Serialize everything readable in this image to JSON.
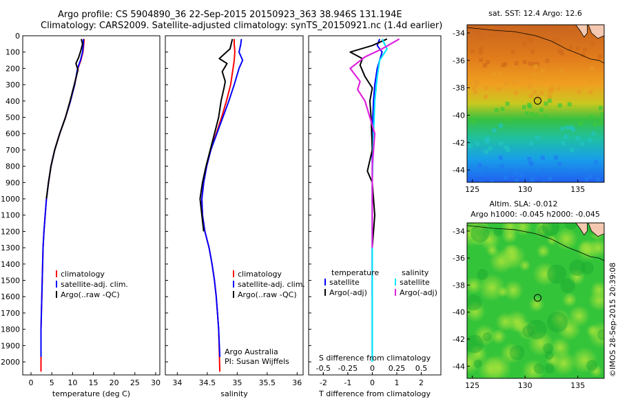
{
  "header": {
    "line1": "Argo profile: CS 5904890_36 22-Sep-2015 20150923_363 38.946S 131.194E",
    "line2": "Climatology: CARS2009. Satellite-adjusted climatology: synTS_20150921.nc (1.4d earlier)"
  },
  "colors": {
    "climatology": "#ff0000",
    "satellite": "#0000ff",
    "argo": "#000000",
    "salinity_satellite": "#00e5ff",
    "salinity_argo": "#e020e0"
  },
  "chart_data": [
    {
      "type": "line",
      "panel": "temperature",
      "xlabel": "temperature (deg C)",
      "ylabel": "",
      "xlim": [
        -2,
        31
      ],
      "ylim": [
        2080,
        0
      ],
      "xticks": [
        0,
        5,
        10,
        15,
        20,
        25,
        30
      ],
      "yticks": [
        0,
        100,
        200,
        300,
        400,
        500,
        600,
        700,
        800,
        900,
        1000,
        1100,
        1200,
        1300,
        1400,
        1500,
        1600,
        1700,
        1800,
        1900,
        2000
      ],
      "legend": [
        "climatology",
        "satellite-adj. clim.",
        "Argo(..raw -QC)"
      ],
      "series": [
        {
          "name": "climatology",
          "color_key": "climatology",
          "x": [
            12.8,
            12.7,
            12.5,
            12.0,
            11.3,
            10.5,
            9.5,
            8.3,
            6.9,
            5.7,
            4.8,
            4.2,
            3.7,
            3.4,
            3.1,
            2.9,
            2.8,
            2.7,
            2.6,
            2.5,
            2.4,
            2.4
          ],
          "y": [
            20,
            50,
            100,
            150,
            200,
            300,
            400,
            500,
            600,
            700,
            800,
            900,
            1000,
            1100,
            1200,
            1300,
            1400,
            1500,
            1600,
            1700,
            1800,
            2060
          ]
        },
        {
          "name": "satellite-adj. clim.",
          "color_key": "satellite",
          "x": [
            12.6,
            12.6,
            12.4,
            11.9,
            11.2,
            10.5,
            9.5,
            8.3,
            6.9,
            5.7,
            4.8,
            4.2,
            3.7,
            3.4,
            3.1,
            2.9,
            2.8,
            2.7,
            2.6,
            2.5,
            2.4,
            2.4
          ],
          "y": [
            20,
            50,
            100,
            150,
            200,
            300,
            400,
            500,
            600,
            700,
            800,
            900,
            1000,
            1100,
            1200,
            1300,
            1400,
            1500,
            1600,
            1700,
            1800,
            1970
          ]
        },
        {
          "name": "Argo(..raw -QC)",
          "color_key": "argo",
          "x": [
            12.1,
            12.4,
            12.0,
            11.5,
            10.8,
            11.3,
            10.4,
            9.4,
            8.3,
            6.9,
            5.7,
            4.8,
            4.2,
            3.7
          ],
          "y": [
            20,
            50,
            90,
            130,
            170,
            210,
            300,
            400,
            500,
            600,
            700,
            800,
            900,
            1000
          ]
        }
      ]
    },
    {
      "type": "line",
      "panel": "salinity",
      "xlabel": "salinity",
      "xlim": [
        33.8,
        36.1
      ],
      "ylim": [
        2080,
        0
      ],
      "xticks": [
        34,
        34.5,
        35,
        35.5,
        36
      ],
      "legend": [
        "climatology",
        "satellite-adj. clim.",
        "Argo(..raw -QC)"
      ],
      "annotation": [
        "Argo Australia",
        "PI: Susan Wijffels"
      ],
      "series": [
        {
          "name": "climatology",
          "color_key": "climatology",
          "x": [
            34.95,
            34.95,
            34.96,
            34.95,
            34.93,
            34.89,
            34.82,
            34.74,
            34.65,
            34.56,
            34.49,
            34.44,
            34.41,
            34.42,
            34.46,
            34.53,
            34.58,
            34.62,
            34.65,
            34.67,
            34.69,
            34.71
          ],
          "y": [
            20,
            50,
            100,
            150,
            200,
            300,
            400,
            500,
            600,
            700,
            800,
            900,
            1000,
            1100,
            1200,
            1300,
            1400,
            1500,
            1600,
            1700,
            1800,
            2060
          ]
        },
        {
          "name": "satellite-adj. clim.",
          "color_key": "satellite",
          "x": [
            35.07,
            35.06,
            35.03,
            35.09,
            35.03,
            34.95,
            34.86,
            34.76,
            34.66,
            34.56,
            34.49,
            34.44,
            34.41,
            34.42,
            34.46,
            34.53,
            34.58,
            34.62,
            34.65,
            34.67,
            34.69,
            34.71
          ],
          "y": [
            20,
            50,
            100,
            150,
            200,
            300,
            400,
            500,
            600,
            700,
            800,
            900,
            1000,
            1100,
            1200,
            1300,
            1400,
            1500,
            1600,
            1700,
            1800,
            1970
          ]
        },
        {
          "name": "Argo(..raw -QC)",
          "color_key": "argo",
          "x": [
            34.92,
            34.88,
            34.7,
            34.83,
            34.75,
            34.8,
            34.78,
            34.73,
            34.69,
            34.62,
            34.55,
            34.48,
            34.42,
            34.38,
            34.41,
            34.44
          ],
          "y": [
            20,
            80,
            140,
            170,
            220,
            280,
            320,
            400,
            500,
            600,
            700,
            800,
            900,
            1000,
            1100,
            1200
          ]
        }
      ]
    },
    {
      "type": "line",
      "panel": "difference",
      "xlabel": "T difference from climatology",
      "xlabel_top": "S difference from climatology",
      "xlim": [
        -2.6,
        2.8
      ],
      "ylim": [
        2080,
        0
      ],
      "xticks": [
        -2,
        -1,
        0,
        1,
        2
      ],
      "xtick_labels": [
        "-2",
        "-1",
        "0",
        "1",
        "2"
      ],
      "sticks": [
        -2,
        -1,
        0,
        1,
        2
      ],
      "stick_labels": [
        "-0.5",
        "-0.25",
        "0",
        "0.25",
        "0.5"
      ],
      "legend_headers": [
        "temperature",
        "salinity"
      ],
      "legend": [
        "satellite",
        "Argo(-adj)",
        "satellite",
        "Argo(-adj)"
      ],
      "series": [
        {
          "name": "satellite",
          "group": "temperature",
          "color_key": "satellite",
          "x": [
            0.3,
            0.2,
            0.4,
            0.3,
            0.2,
            0.1,
            0.05,
            0.02,
            0.0,
            0.0,
            0.0,
            0.0,
            0.0
          ],
          "y": [
            20,
            60,
            100,
            150,
            200,
            300,
            400,
            500,
            700,
            900,
            1200,
            1600,
            2000
          ]
        },
        {
          "name": "Argo(-adj)",
          "group": "temperature",
          "color_key": "argo",
          "x": [
            0.6,
            0.0,
            -0.9,
            -0.4,
            -0.5,
            -0.3,
            0.0,
            -0.1,
            -0.05,
            0.0,
            -0.2,
            0.0,
            0.1,
            0.0,
            0.0
          ],
          "y": [
            20,
            60,
            100,
            140,
            180,
            250,
            320,
            400,
            500,
            700,
            830,
            900,
            1100,
            1300,
            1600
          ]
        },
        {
          "name": "satellite",
          "group": "salinity",
          "color_key": "salinity_satellite",
          "x": [
            0.4,
            0.6,
            0.3,
            0.2,
            0.1,
            0.05,
            0.0,
            0.0,
            0.0,
            0.0,
            0.0
          ],
          "y": [
            20,
            80,
            150,
            250,
            400,
            600,
            900,
            1200,
            1500,
            1800,
            2000
          ]
        },
        {
          "name": "Argo(-adj)",
          "group": "salinity",
          "color_key": "salinity_argo",
          "x": [
            1.1,
            0.4,
            -0.3,
            -0.9,
            -0.5,
            -0.6,
            -0.3,
            0.1,
            0.0,
            0.0,
            0.0
          ],
          "y": [
            20,
            80,
            130,
            200,
            280,
            330,
            400,
            600,
            800,
            1000,
            1300
          ]
        }
      ]
    },
    {
      "type": "heatmap",
      "panel": "sst_map",
      "title": "sat. SST: 12.4  Argo: 12.6",
      "xlim": [
        124.5,
        137.5
      ],
      "ylim": [
        -44.9,
        -33.4
      ],
      "xticks": [
        125,
        130,
        135
      ],
      "yticks": [
        -34,
        -36,
        -38,
        -40,
        -42,
        -44
      ],
      "marker": {
        "lon": 131.194,
        "lat": -38.946
      }
    },
    {
      "type": "heatmap",
      "panel": "sla_map",
      "title": [
        "Altim. SLA: -0.012",
        "Argo h1000: -0.045 h2000: -0.045"
      ],
      "xlim": [
        124.5,
        137.5
      ],
      "ylim": [
        -44.9,
        -33.4
      ],
      "xticks": [
        125,
        130,
        135
      ],
      "yticks": [
        -34,
        -36,
        -38,
        -40,
        -42,
        -44
      ],
      "marker": {
        "lon": 131.194,
        "lat": -38.946
      }
    }
  ],
  "footer": {
    "credit": "©IMOS 28-Sep-2015 20:39:08"
  }
}
